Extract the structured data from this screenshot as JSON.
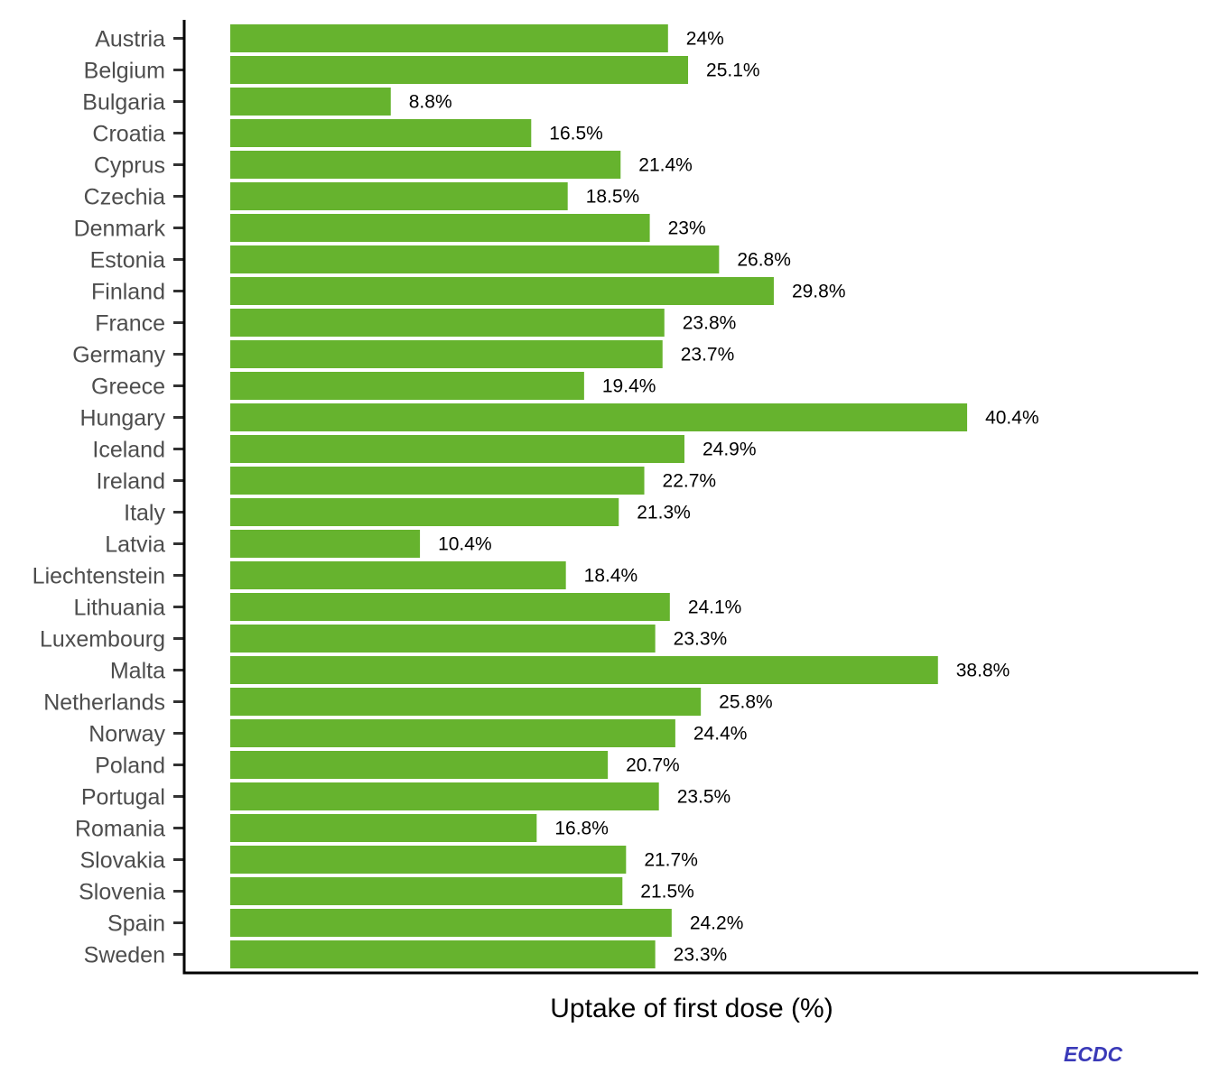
{
  "chart_data": {
    "type": "bar",
    "orientation": "horizontal",
    "categories": [
      "Austria",
      "Belgium",
      "Bulgaria",
      "Croatia",
      "Cyprus",
      "Czechia",
      "Denmark",
      "Estonia",
      "Finland",
      "France",
      "Germany",
      "Greece",
      "Hungary",
      "Iceland",
      "Ireland",
      "Italy",
      "Latvia",
      "Liechtenstein",
      "Lithuania",
      "Luxembourg",
      "Malta",
      "Netherlands",
      "Norway",
      "Poland",
      "Portugal",
      "Romania",
      "Slovakia",
      "Slovenia",
      "Spain",
      "Sweden"
    ],
    "values": [
      24,
      25.1,
      8.8,
      16.5,
      21.4,
      18.5,
      23,
      26.8,
      29.8,
      23.8,
      23.7,
      19.4,
      40.4,
      24.9,
      22.7,
      21.3,
      10.4,
      18.4,
      24.1,
      23.3,
      38.8,
      25.8,
      24.4,
      20.7,
      23.5,
      16.8,
      21.7,
      21.5,
      24.2,
      23.3
    ],
    "value_labels": [
      "24%",
      "25.1%",
      "8.8%",
      "16.5%",
      "21.4%",
      "18.5%",
      "23%",
      "26.8%",
      "29.8%",
      "23.8%",
      "23.7%",
      "19.4%",
      "40.4%",
      "24.9%",
      "22.7%",
      "21.3%",
      "10.4%",
      "18.4%",
      "24.1%",
      "23.3%",
      "38.8%",
      "25.8%",
      "24.4%",
      "20.7%",
      "23.5%",
      "16.8%",
      "21.7%",
      "21.5%",
      "24.2%",
      "23.3%"
    ],
    "title": "",
    "xlabel": "Uptake of first dose (%)",
    "ylabel": "",
    "xlim": [
      0,
      53
    ],
    "grid": false,
    "bar_color": "#66b32e"
  },
  "source": "ECDC"
}
